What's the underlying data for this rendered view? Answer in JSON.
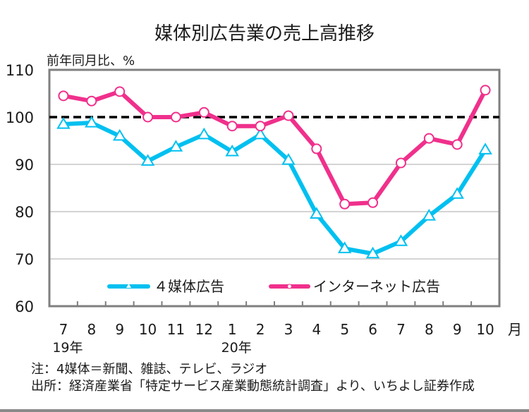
{
  "chart_data": {
    "type": "line",
    "title": "媒体別広告業の売上高推移",
    "ylabel": "前年同月比、%",
    "xlabel": "月",
    "ylim": [
      60,
      110
    ],
    "yticks": [
      "60",
      "70",
      "80",
      "90",
      "100",
      "110"
    ],
    "categories": [
      "7",
      "8",
      "9",
      "10",
      "11",
      "12",
      "1",
      "2",
      "3",
      "4",
      "5",
      "6",
      "7",
      "8",
      "9",
      "10"
    ],
    "year_labels": [
      "19年",
      "20年"
    ],
    "reference_line": 100,
    "grid": true,
    "legend_position": "bottom-inside",
    "series": [
      {
        "name": "４媒体広告",
        "color": "#00c0f0",
        "marker": "triangle",
        "values": [
          98.5,
          98.8,
          96.0,
          90.7,
          93.7,
          96.3,
          92.7,
          96.3,
          90.9,
          79.5,
          72.2,
          71.1,
          73.7,
          79.1,
          83.7,
          93.1
        ]
      },
      {
        "name": "インターネット広告",
        "color": "#f0308c",
        "marker": "circle",
        "values": [
          104.5,
          103.4,
          105.4,
          100.0,
          100.0,
          101.0,
          98.1,
          98.1,
          100.3,
          93.3,
          81.6,
          81.9,
          90.3,
          95.5,
          94.2,
          105.7
        ]
      }
    ]
  },
  "notes": {
    "note": "注：4媒体＝新聞、雑誌、テレビ、ラジオ",
    "source": "出所：経済産業省「特定サービス産業動態統計調査」より、いちよし証券作成"
  }
}
